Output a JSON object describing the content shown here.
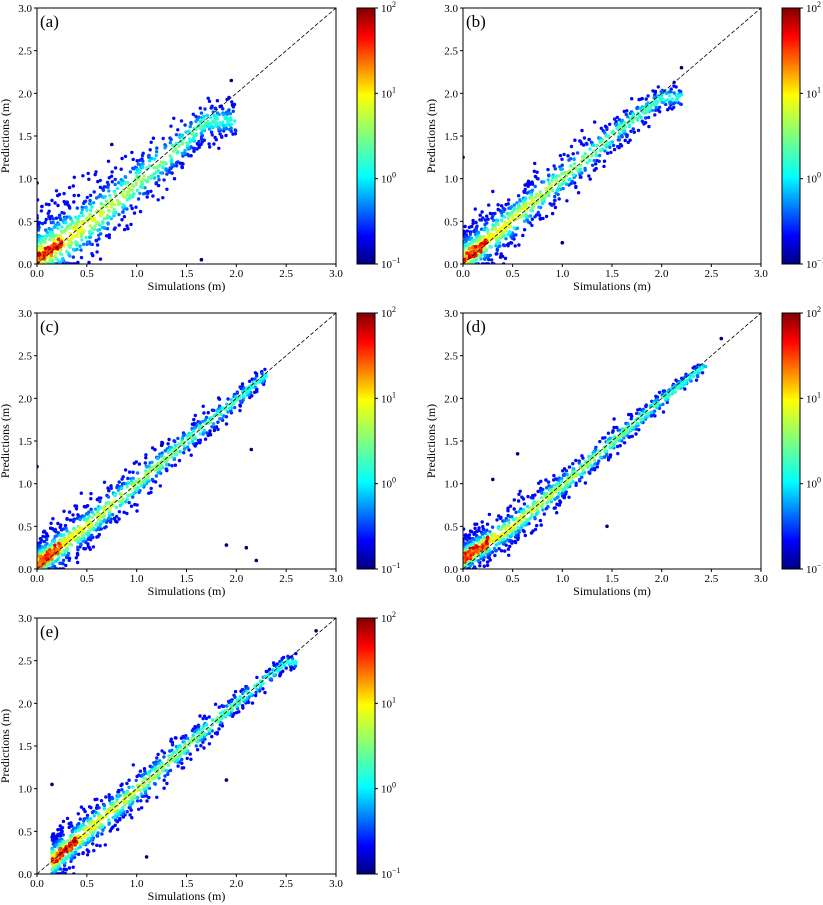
{
  "figure": {
    "panels": [
      {
        "panel_label": "(a)",
        "xlabel": "Simulations (m)",
        "ylabel": "Predictions (m)"
      },
      {
        "panel_label": "(b)",
        "xlabel": "Simulations (m)",
        "ylabel": "Predictions (m)"
      },
      {
        "panel_label": "(c)",
        "xlabel": "Simulations (m)",
        "ylabel": "Predictions (m)"
      },
      {
        "panel_label": "(d)",
        "xlabel": "Simulations (m)",
        "ylabel": "Predictions (m)"
      },
      {
        "panel_label": "(e)",
        "xlabel": "Simulations (m)",
        "ylabel": "Predictions (m)"
      }
    ]
  },
  "chart_data": [
    {
      "type": "scatter",
      "panel_label": "(a)",
      "xlabel": "Simulations (m)",
      "ylabel": "Predictions (m)",
      "xlim": [
        0,
        3
      ],
      "ylim": [
        0,
        3
      ],
      "xticks": [
        "0.0",
        "0.5",
        "1.0",
        "1.5",
        "2.0",
        "2.5",
        "3.0"
      ],
      "yticks": [
        "0.0",
        "0.5",
        "1.0",
        "1.5",
        "2.0",
        "2.5",
        "3.0"
      ],
      "reference_line": {
        "style": "dashed",
        "x": [
          0,
          3
        ],
        "y": [
          0,
          3
        ]
      },
      "colorbar": {
        "scale": "log",
        "range": [
          0.1,
          100
        ],
        "ticks": [
          "10",
          "10",
          "10",
          "10"
        ],
        "tick_exponents": [
          "−1",
          "0",
          "1",
          "2"
        ],
        "colormap": "jet"
      },
      "density_ridge": {
        "x": [
          0.0,
          0.3,
          0.6,
          0.9,
          1.2,
          1.5,
          1.7
        ],
        "y": [
          0.06,
          0.3,
          0.55,
          0.85,
          1.15,
          1.45,
          1.68
        ]
      },
      "scatter_cloud": {
        "x_max": 2.0,
        "spread_low_x": 0.45,
        "spread_high_x": 0.35
      },
      "outliers": [
        {
          "x": 1.95,
          "y": 2.15
        },
        {
          "x": 1.65,
          "y": 0.05
        },
        {
          "x": 0.75,
          "y": 1.4
        },
        {
          "x": 0.0,
          "y": 0.95
        }
      ]
    },
    {
      "type": "scatter",
      "panel_label": "(b)",
      "xlabel": "Simulations (m)",
      "ylabel": "Predictions (m)",
      "xlim": [
        0,
        3
      ],
      "ylim": [
        0,
        3
      ],
      "xticks": [
        "0.0",
        "0.5",
        "1.0",
        "1.5",
        "2.0",
        "2.5",
        "3.0"
      ],
      "yticks": [
        "0.0",
        "0.5",
        "1.0",
        "1.5",
        "2.0",
        "2.5",
        "3.0"
      ],
      "reference_line": {
        "style": "dashed",
        "x": [
          0,
          3
        ],
        "y": [
          0,
          3
        ]
      },
      "colorbar": {
        "scale": "log",
        "range": [
          0.1,
          100
        ],
        "ticks": [
          "10",
          "10",
          "10",
          "10"
        ],
        "tick_exponents": [
          "−1",
          "0",
          "1",
          "2"
        ],
        "colormap": "jet"
      },
      "density_ridge": {
        "x": [
          0.0,
          0.4,
          0.8,
          1.2,
          1.6,
          2.0
        ],
        "y": [
          0.05,
          0.42,
          0.82,
          1.2,
          1.6,
          1.95
        ]
      },
      "scatter_cloud": {
        "x_max": 2.2,
        "spread_low_x": 0.3,
        "spread_high_x": 0.25
      },
      "outliers": [
        {
          "x": 2.2,
          "y": 2.3
        },
        {
          "x": 0.0,
          "y": 1.25
        },
        {
          "x": 1.0,
          "y": 0.25
        }
      ]
    },
    {
      "type": "scatter",
      "panel_label": "(c)",
      "xlabel": "Simulations (m)",
      "ylabel": "Predictions (m)",
      "xlim": [
        0,
        3
      ],
      "ylim": [
        0,
        3
      ],
      "xticks": [
        "0.0",
        "0.5",
        "1.0",
        "1.5",
        "2.0",
        "2.5",
        "3.0"
      ],
      "yticks": [
        "0.0",
        "0.5",
        "1.0",
        "1.5",
        "2.0",
        "2.5",
        "3.0"
      ],
      "reference_line": {
        "style": "dashed",
        "x": [
          0,
          3
        ],
        "y": [
          0,
          3
        ]
      },
      "colorbar": {
        "scale": "log",
        "range": [
          0.1,
          100
        ],
        "ticks": [
          "10",
          "10",
          "10",
          "10"
        ],
        "tick_exponents": [
          "−1",
          "0",
          "1",
          "2"
        ],
        "colormap": "jet"
      },
      "density_ridge": {
        "x": [
          0.0,
          0.5,
          1.0,
          1.5,
          2.0,
          2.3
        ],
        "y": [
          0.05,
          0.5,
          1.0,
          1.5,
          1.98,
          2.28
        ]
      },
      "scatter_cloud": {
        "x_max": 2.3,
        "spread_low_x": 0.25,
        "spread_high_x": 0.2
      },
      "outliers": [
        {
          "x": 2.2,
          "y": 0.1
        },
        {
          "x": 2.1,
          "y": 0.25
        },
        {
          "x": 1.9,
          "y": 0.28
        },
        {
          "x": 2.15,
          "y": 1.4
        },
        {
          "x": 0.0,
          "y": 1.2
        },
        {
          "x": 1.25,
          "y": 1.45
        }
      ]
    },
    {
      "type": "scatter",
      "panel_label": "(d)",
      "xlabel": "Simulations (m)",
      "ylabel": "Predictions (m)",
      "xlim": [
        0,
        3
      ],
      "ylim": [
        0,
        3
      ],
      "xticks": [
        "0.0",
        "0.5",
        "1.0",
        "1.5",
        "2.0",
        "2.5",
        "3.0"
      ],
      "yticks": [
        "0.0",
        "0.5",
        "1.0",
        "1.5",
        "2.0",
        "2.5",
        "3.0"
      ],
      "reference_line": {
        "style": "dashed",
        "x": [
          0,
          3
        ],
        "y": [
          0,
          3
        ]
      },
      "colorbar": {
        "scale": "log",
        "range": [
          0.1,
          100
        ],
        "ticks": [
          "10",
          "10",
          "10",
          "10"
        ],
        "tick_exponents": [
          "−1",
          "0",
          "1",
          "2"
        ],
        "colormap": "jet"
      },
      "density_ridge": {
        "x": [
          0.0,
          0.5,
          1.0,
          1.5,
          2.0,
          2.4
        ],
        "y": [
          0.12,
          0.5,
          0.98,
          1.48,
          1.98,
          2.35
        ]
      },
      "scatter_cloud": {
        "x_max": 2.45,
        "spread_low_x": 0.2,
        "spread_high_x": 0.15
      },
      "outliers": [
        {
          "x": 0.55,
          "y": 1.35
        },
        {
          "x": 0.3,
          "y": 1.05
        },
        {
          "x": 1.45,
          "y": 0.5
        },
        {
          "x": 2.6,
          "y": 2.7
        }
      ]
    },
    {
      "type": "scatter",
      "panel_label": "(e)",
      "xlabel": "Simulations (m)",
      "ylabel": "Predictions (m)",
      "xlim": [
        0,
        3
      ],
      "ylim": [
        0,
        3
      ],
      "xticks": [
        "0.0",
        "0.5",
        "1.0",
        "1.5",
        "2.0",
        "2.5",
        "3.0"
      ],
      "yticks": [
        "0.0",
        "0.5",
        "1.0",
        "1.5",
        "2.0",
        "2.5",
        "3.0"
      ],
      "reference_line": {
        "style": "dashed",
        "x": [
          0,
          3
        ],
        "y": [
          0,
          3
        ]
      },
      "colorbar": {
        "scale": "log",
        "range": [
          0.1,
          100
        ],
        "ticks": [
          "10",
          "10",
          "10",
          "10"
        ],
        "tick_exponents": [
          "−1",
          "0",
          "1",
          "2"
        ],
        "colormap": "jet"
      },
      "density_ridge": {
        "x": [
          0.15,
          0.5,
          1.0,
          1.5,
          2.0,
          2.5
        ],
        "y": [
          0.15,
          0.5,
          0.98,
          1.5,
          2.0,
          2.48
        ]
      },
      "scatter_cloud": {
        "x_max": 2.6,
        "spread_low_x": 0.25,
        "spread_high_x": 0.15
      },
      "outliers": [
        {
          "x": 0.15,
          "y": 1.05
        },
        {
          "x": 2.8,
          "y": 2.85
        },
        {
          "x": 1.1,
          "y": 0.2
        },
        {
          "x": 1.9,
          "y": 1.1
        }
      ]
    }
  ]
}
